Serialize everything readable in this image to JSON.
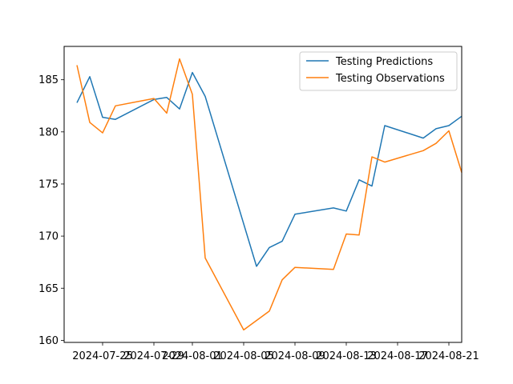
{
  "chart_data": {
    "type": "line",
    "title": "",
    "xlabel": "",
    "ylabel": "",
    "x_axis_type": "date",
    "xlim": [
      "2024-07-22",
      "2024-08-22"
    ],
    "ylim": [
      159.8,
      188.2
    ],
    "xticks": [
      "2024-07-25",
      "2024-07-29",
      "2024-08-01",
      "2024-08-05",
      "2024-08-09",
      "2024-08-13",
      "2024-08-17",
      "2024-08-21"
    ],
    "yticks": [
      160,
      165,
      170,
      175,
      180,
      185
    ],
    "grid": false,
    "legend_position": "upper right",
    "series": [
      {
        "name": "Testing Predictions",
        "color": "#1f77b4",
        "points": [
          {
            "x": "2024-07-23",
            "y": 182.8
          },
          {
            "x": "2024-07-24",
            "y": 185.3
          },
          {
            "x": "2024-07-25",
            "y": 181.4
          },
          {
            "x": "2024-07-26",
            "y": 181.2
          },
          {
            "x": "2024-07-29",
            "y": 183.1
          },
          {
            "x": "2024-07-30",
            "y": 183.3
          },
          {
            "x": "2024-07-31",
            "y": 182.2
          },
          {
            "x": "2024-08-01",
            "y": 185.7
          },
          {
            "x": "2024-08-02",
            "y": 183.4
          },
          {
            "x": "2024-08-06",
            "y": 167.1
          },
          {
            "x": "2024-08-07",
            "y": 168.9
          },
          {
            "x": "2024-08-08",
            "y": 169.5
          },
          {
            "x": "2024-08-09",
            "y": 172.1
          },
          {
            "x": "2024-08-12",
            "y": 172.7
          },
          {
            "x": "2024-08-13",
            "y": 172.4
          },
          {
            "x": "2024-08-14",
            "y": 175.4
          },
          {
            "x": "2024-08-15",
            "y": 174.8
          },
          {
            "x": "2024-08-16",
            "y": 180.6
          },
          {
            "x": "2024-08-19",
            "y": 179.4
          },
          {
            "x": "2024-08-20",
            "y": 180.3
          },
          {
            "x": "2024-08-21",
            "y": 180.6
          },
          {
            "x": "2024-08-22",
            "y": 181.5
          }
        ]
      },
      {
        "name": "Testing Observations",
        "color": "#ff7f0e",
        "points": [
          {
            "x": "2024-07-23",
            "y": 186.4
          },
          {
            "x": "2024-07-24",
            "y": 180.9
          },
          {
            "x": "2024-07-25",
            "y": 179.9
          },
          {
            "x": "2024-07-26",
            "y": 182.5
          },
          {
            "x": "2024-07-29",
            "y": 183.2
          },
          {
            "x": "2024-07-30",
            "y": 181.8
          },
          {
            "x": "2024-07-31",
            "y": 187.0
          },
          {
            "x": "2024-08-01",
            "y": 183.6
          },
          {
            "x": "2024-08-02",
            "y": 167.9
          },
          {
            "x": "2024-08-05",
            "y": 161.0
          },
          {
            "x": "2024-08-07",
            "y": 162.8
          },
          {
            "x": "2024-08-08",
            "y": 165.8
          },
          {
            "x": "2024-08-09",
            "y": 167.0
          },
          {
            "x": "2024-08-12",
            "y": 166.8
          },
          {
            "x": "2024-08-13",
            "y": 170.2
          },
          {
            "x": "2024-08-14",
            "y": 170.1
          },
          {
            "x": "2024-08-15",
            "y": 177.6
          },
          {
            "x": "2024-08-16",
            "y": 177.1
          },
          {
            "x": "2024-08-19",
            "y": 178.2
          },
          {
            "x": "2024-08-20",
            "y": 178.9
          },
          {
            "x": "2024-08-21",
            "y": 180.1
          },
          {
            "x": "2024-08-22",
            "y": 176.1
          }
        ]
      }
    ]
  }
}
